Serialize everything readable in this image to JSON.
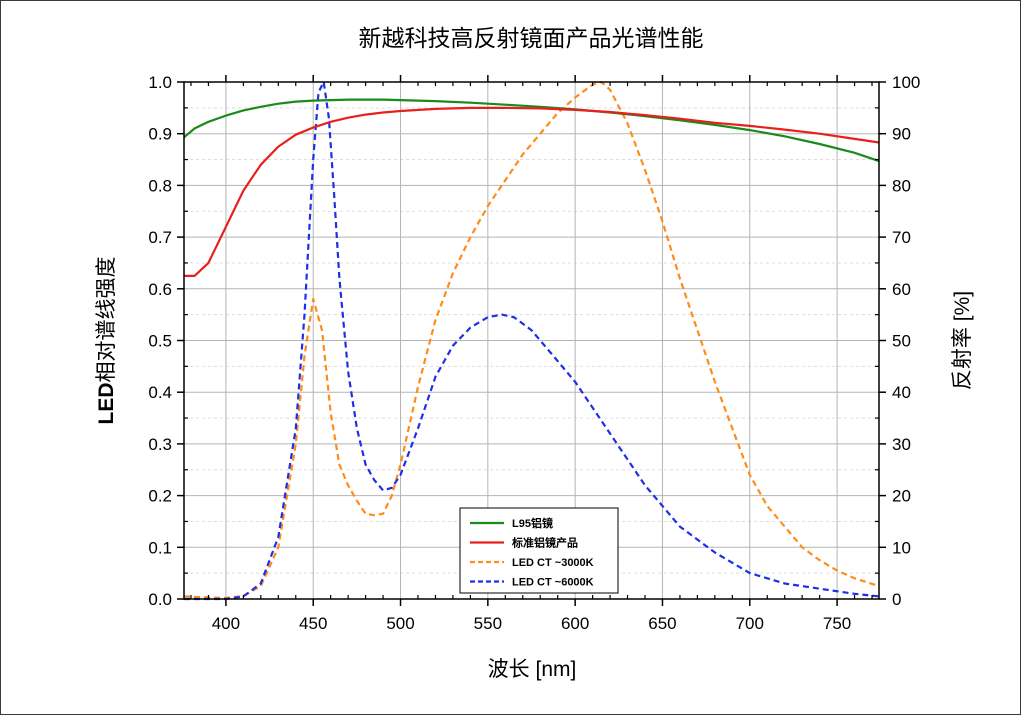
{
  "chart_data": {
    "type": "line",
    "title": "新越科技高反射镜面产品光谱性能",
    "xlabel": "波长 [nm]",
    "ylabel_left_bold": "LED",
    "ylabel_left_rest": "相对谱线强度",
    "ylabel_right": "反射率 [%]",
    "xlim": [
      376,
      774
    ],
    "ylim_left": [
      0,
      1.0
    ],
    "ylim_right": [
      0,
      100
    ],
    "x_ticks": [
      400,
      450,
      500,
      550,
      600,
      650,
      700,
      750
    ],
    "y_left_ticks": [
      "0.0",
      "0.1",
      "0.2",
      "0.3",
      "0.4",
      "0.5",
      "0.6",
      "0.7",
      "0.8",
      "0.9",
      "1.0"
    ],
    "y_right_ticks": [
      "0",
      "10",
      "20",
      "30",
      "40",
      "50",
      "60",
      "70",
      "80",
      "90",
      "100"
    ],
    "grid": true,
    "legend_position": "bottom-center",
    "series": [
      {
        "name": "L95铝镜",
        "axis": "right",
        "color": "#1a8a1a",
        "style": "solid",
        "x": [
          376,
          382,
          390,
          400,
          410,
          420,
          430,
          440,
          450,
          460,
          470,
          480,
          490,
          500,
          520,
          540,
          560,
          580,
          600,
          620,
          640,
          660,
          680,
          700,
          720,
          740,
          760,
          774
        ],
        "y": [
          89.3,
          91,
          92.3,
          93.5,
          94.5,
          95.2,
          95.8,
          96.2,
          96.4,
          96.5,
          96.6,
          96.6,
          96.6,
          96.5,
          96.3,
          96.0,
          95.6,
          95.2,
          94.7,
          94.1,
          93.4,
          92.6,
          91.7,
          90.7,
          89.5,
          88.0,
          86.3,
          84.7
        ]
      },
      {
        "name": "标准铝镜产品",
        "axis": "right",
        "color": "#e8201c",
        "style": "solid",
        "x": [
          376,
          382,
          390,
          400,
          410,
          420,
          430,
          440,
          450,
          460,
          470,
          480,
          490,
          500,
          520,
          540,
          560,
          580,
          600,
          620,
          640,
          660,
          680,
          700,
          720,
          740,
          760,
          774
        ],
        "y": [
          62.5,
          62.5,
          65,
          72,
          79,
          84,
          87.5,
          89.8,
          91.2,
          92.3,
          93.1,
          93.7,
          94.1,
          94.4,
          94.8,
          95.0,
          95.0,
          94.9,
          94.6,
          94.2,
          93.6,
          92.9,
          92.1,
          91.5,
          90.8,
          90.0,
          89.0,
          88.3
        ]
      },
      {
        "name": "LED CT ~3000K",
        "axis": "left",
        "color": "#ff8c1a",
        "style": "dashed",
        "x": [
          376,
          390,
          400,
          410,
          420,
          430,
          440,
          445,
          450,
          455,
          460,
          465,
          470,
          475,
          480,
          485,
          490,
          495,
          500,
          510,
          520,
          530,
          540,
          550,
          560,
          570,
          580,
          590,
          600,
          610,
          615,
          620,
          630,
          640,
          650,
          660,
          670,
          680,
          690,
          700,
          710,
          720,
          730,
          740,
          750,
          760,
          774
        ],
        "y": [
          0.005,
          0.003,
          0.002,
          0.006,
          0.025,
          0.1,
          0.3,
          0.47,
          0.58,
          0.52,
          0.36,
          0.26,
          0.22,
          0.19,
          0.165,
          0.162,
          0.165,
          0.2,
          0.26,
          0.41,
          0.54,
          0.63,
          0.7,
          0.76,
          0.81,
          0.86,
          0.9,
          0.94,
          0.97,
          0.995,
          1.0,
          0.985,
          0.92,
          0.83,
          0.73,
          0.62,
          0.52,
          0.42,
          0.33,
          0.24,
          0.18,
          0.14,
          0.1,
          0.075,
          0.055,
          0.04,
          0.025
        ]
      },
      {
        "name": "LED CT ~6000K",
        "axis": "left",
        "color": "#1d2fe8",
        "style": "dashed",
        "x": [
          376,
          390,
          400,
          410,
          420,
          430,
          440,
          445,
          450,
          453,
          456,
          459,
          462,
          465,
          470,
          475,
          480,
          485,
          490,
          495,
          500,
          510,
          520,
          530,
          540,
          550,
          558,
          565,
          575,
          585,
          600,
          620,
          640,
          660,
          680,
          700,
          720,
          740,
          760,
          774
        ],
        "y": [
          0.0,
          0.0,
          0.0,
          0.005,
          0.03,
          0.12,
          0.33,
          0.55,
          0.85,
          0.98,
          1.0,
          0.93,
          0.78,
          0.62,
          0.44,
          0.33,
          0.26,
          0.23,
          0.21,
          0.215,
          0.24,
          0.33,
          0.43,
          0.49,
          0.525,
          0.545,
          0.55,
          0.545,
          0.52,
          0.48,
          0.42,
          0.32,
          0.22,
          0.14,
          0.09,
          0.05,
          0.03,
          0.02,
          0.01,
          0.005
        ]
      }
    ]
  }
}
